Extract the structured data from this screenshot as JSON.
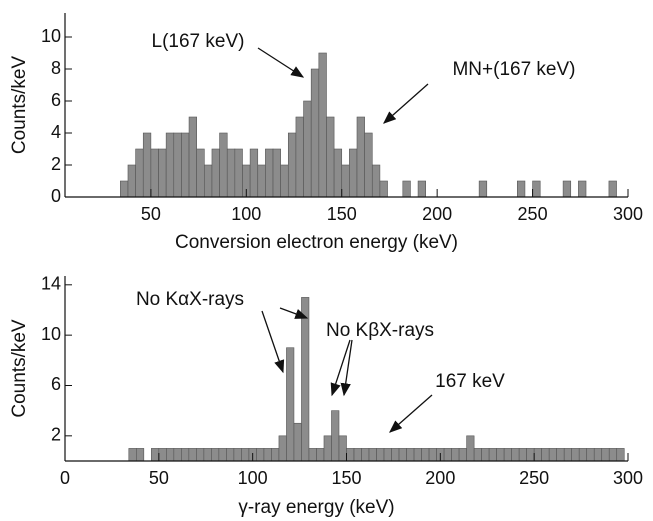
{
  "chart_data": [
    {
      "type": "histogram",
      "ylabel": "Counts/keV",
      "xlabel": "Conversion electron energy (keV)",
      "xlim": [
        5,
        300
      ],
      "xticks": [
        50,
        100,
        150,
        200,
        250,
        300
      ],
      "ylim": [
        0,
        11.5
      ],
      "yticks": [
        0,
        2,
        4,
        6,
        8,
        10
      ],
      "color": "#8c8c8c",
      "bins": [
        34,
        38,
        42,
        46,
        50,
        54,
        58,
        62,
        66,
        70,
        74,
        78,
        82,
        86,
        90,
        94,
        98,
        102,
        106,
        110,
        114,
        118,
        122,
        126,
        130,
        134,
        138,
        142,
        146,
        150,
        154,
        158,
        162,
        166,
        170,
        174,
        178,
        182,
        186,
        190,
        194,
        198,
        202,
        206,
        210,
        214,
        218,
        222,
        226,
        230,
        234,
        238,
        242,
        246,
        250,
        254,
        258,
        262,
        266,
        270,
        274,
        278,
        282,
        286,
        290,
        294,
        298
      ],
      "values": [
        1,
        2,
        3,
        4,
        3,
        3,
        4,
        4,
        4,
        5,
        3,
        2,
        3,
        4,
        3,
        3,
        2,
        3,
        2,
        3,
        3,
        2,
        4,
        5,
        6,
        8,
        9,
        5,
        3,
        2,
        3,
        5,
        4,
        2,
        1,
        0,
        0,
        1,
        0,
        1,
        0,
        0,
        0,
        0,
        0,
        0,
        0,
        1,
        0,
        0,
        0,
        0,
        1,
        0,
        1,
        0,
        0,
        0,
        1,
        0,
        1,
        0,
        0,
        0,
        1,
        0
      ],
      "annotations": [
        "L(167 keV)",
        "MN+(167 keV)"
      ]
    },
    {
      "type": "histogram",
      "ylabel": "Counts/keV",
      "xlabel": "γ-ray energy (keV)",
      "xlim": [
        0,
        300
      ],
      "xticks": [
        0,
        50,
        100,
        150,
        200,
        250,
        300
      ],
      "ylim": [
        0,
        14.7
      ],
      "yticks": [
        2,
        6,
        10,
        14
      ],
      "color": "#8c8c8c",
      "bins": [
        34,
        38,
        42,
        46,
        50,
        54,
        58,
        62,
        66,
        70,
        74,
        78,
        82,
        86,
        90,
        94,
        98,
        102,
        106,
        110,
        114,
        118,
        122,
        126,
        130,
        134,
        138,
        142,
        146,
        150,
        154,
        158,
        162,
        166,
        170,
        174,
        178,
        182,
        186,
        190,
        194,
        198,
        202,
        206,
        210,
        214,
        218,
        222,
        226,
        230,
        234,
        238,
        242,
        246,
        250,
        254,
        258,
        262,
        266,
        270,
        274,
        278,
        282,
        286,
        290,
        294,
        298
      ],
      "values": [
        1,
        1,
        0,
        1,
        1,
        1,
        1,
        1,
        1,
        1,
        1,
        1,
        1,
        1,
        1,
        1,
        1,
        1,
        1,
        1,
        2,
        9,
        3,
        13,
        1,
        1,
        2,
        4,
        2,
        1,
        1,
        1,
        1,
        1,
        1,
        1,
        1,
        1,
        1,
        1,
        1,
        1,
        1,
        1,
        1,
        2,
        1,
        1,
        1,
        1,
        1,
        1,
        1,
        1,
        1,
        1,
        1,
        1,
        1,
        1,
        1,
        1,
        1,
        1,
        1,
        1
      ],
      "annotations": [
        "No KαX-rays",
        "No KβX-rays",
        "167 keV"
      ]
    }
  ]
}
